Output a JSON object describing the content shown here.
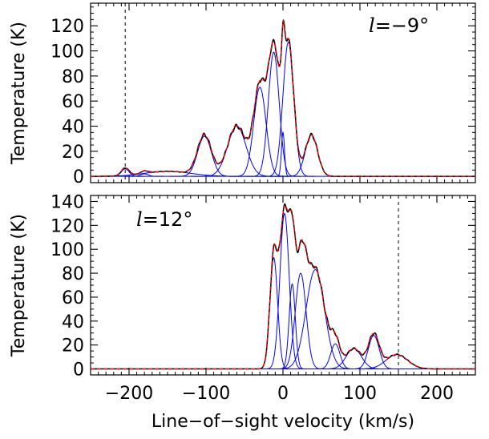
{
  "chart_data": [
    {
      "type": "line",
      "panel_label": "l=−9°",
      "label_italic_part": "l",
      "label_value_part": "=−9°",
      "xlabel": "",
      "ylabel": "Temperature (K)",
      "xlim": [
        -250,
        250
      ],
      "ylim": [
        -5,
        138
      ],
      "xticks": [
        -200,
        -100,
        0,
        100,
        200
      ],
      "yticks": [
        0,
        20,
        40,
        60,
        80,
        100,
        120
      ],
      "ytick_labels": [
        "0",
        "20",
        "40",
        "60",
        "80",
        "100",
        "120"
      ],
      "dashed_vline_x": -205,
      "colors": {
        "observed": "#000000",
        "model_sum": "#ff0000",
        "components": "#0000ff",
        "baseline": "#0000ff"
      },
      "gaussian_components": [
        {
          "center": -205,
          "amplitude": 6,
          "sigma": 5
        },
        {
          "center": -180,
          "amplitude": 2,
          "sigma": 5
        },
        {
          "center": -150,
          "amplitude": 4,
          "sigma": 30
        },
        {
          "center": -102,
          "amplitude": 32,
          "sigma": 9
        },
        {
          "center": -60,
          "amplitude": 40,
          "sigma": 12
        },
        {
          "center": -30,
          "amplitude": 71,
          "sigma": 8
        },
        {
          "center": -12,
          "amplitude": 99,
          "sigma": 7
        },
        {
          "center": 0,
          "amplitude": 35,
          "sigma": 2
        },
        {
          "center": 7,
          "amplitude": 107,
          "sigma": 7
        },
        {
          "center": 37,
          "amplitude": 33,
          "sigma": 8
        }
      ]
    },
    {
      "type": "line",
      "panel_label": "l=12°",
      "label_italic_part": "l",
      "label_value_part": "=12°",
      "xlabel": "Line−of−sight velocity (km/s)",
      "ylabel": "Temperature (K)",
      "xlim": [
        -250,
        250
      ],
      "ylim": [
        -5,
        145
      ],
      "xticks": [
        -200,
        -100,
        0,
        100,
        200
      ],
      "xtick_labels": [
        "−200",
        "−100",
        "0",
        "100",
        "200"
      ],
      "yticks": [
        0,
        20,
        40,
        60,
        80,
        100,
        120,
        140
      ],
      "ytick_labels": [
        "0",
        "20",
        "40",
        "60",
        "80",
        "100",
        "120",
        "140"
      ],
      "dashed_vline_x": 150,
      "colors": {
        "observed": "#000000",
        "model_sum": "#ff0000",
        "components": "#0000ff",
        "baseline": "#0000ff"
      },
      "gaussian_components": [
        {
          "center": -12,
          "amplitude": 93,
          "sigma": 5
        },
        {
          "center": 2,
          "amplitude": 130,
          "sigma": 6
        },
        {
          "center": 12,
          "amplitude": 71,
          "sigma": 4
        },
        {
          "center": 23,
          "amplitude": 80,
          "sigma": 7
        },
        {
          "center": 42,
          "amplitude": 83,
          "sigma": 12
        },
        {
          "center": 68,
          "amplitude": 21,
          "sigma": 6
        },
        {
          "center": 92,
          "amplitude": 17,
          "sigma": 10
        },
        {
          "center": 118,
          "amplitude": 28,
          "sigma": 7
        },
        {
          "center": 148,
          "amplitude": 12,
          "sigma": 14
        }
      ]
    }
  ]
}
